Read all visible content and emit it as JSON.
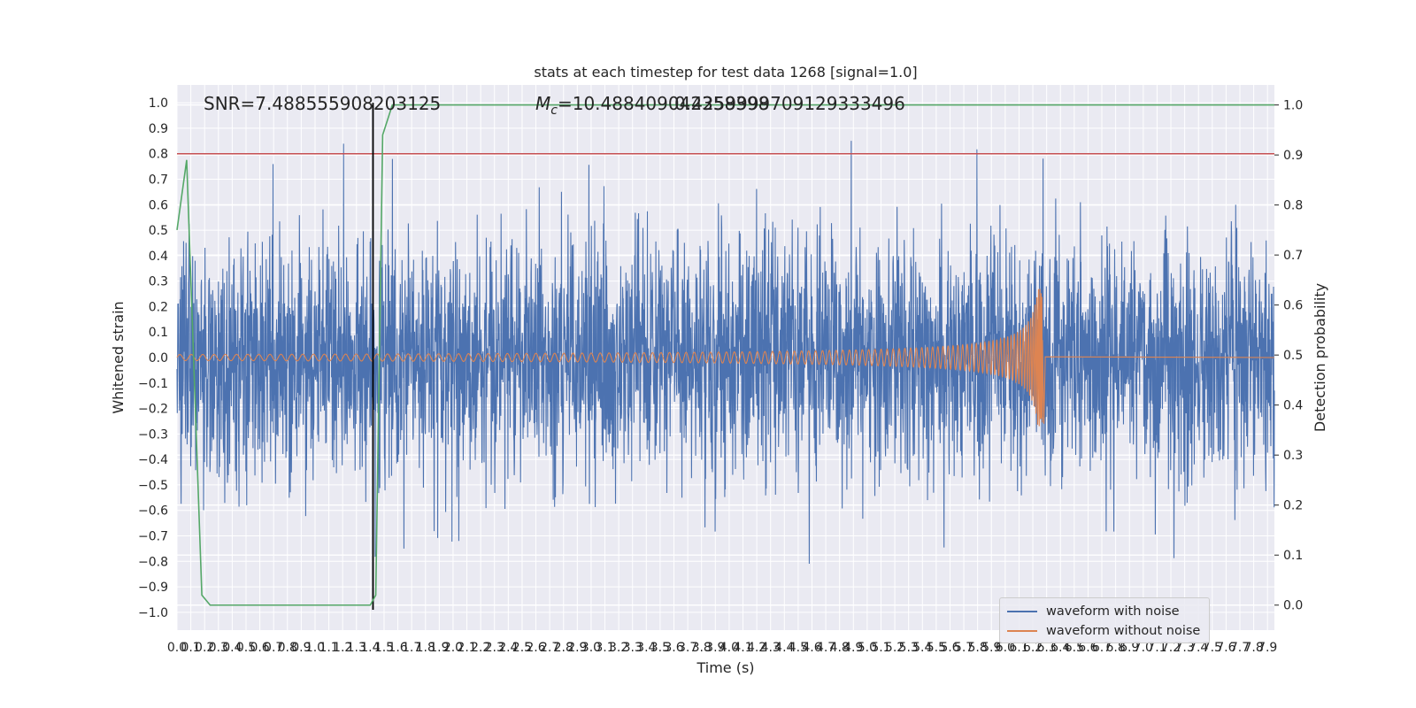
{
  "chart_data": {
    "type": "line",
    "title": "stats at each timestep for test data 1268 [signal=1.0]",
    "xlabel": "Time (s)",
    "ylabel": "Whitened strain",
    "y2label": "Detection probability",
    "xlim": [
      0.0,
      7.95
    ],
    "ylim": [
      -1.07,
      1.07
    ],
    "y2lim": [
      -0.05,
      1.04
    ],
    "yticks": [
      -1.0,
      -0.9,
      -0.8,
      -0.7,
      -0.6,
      -0.5,
      -0.4,
      -0.3,
      -0.2,
      -0.1,
      0.0,
      0.1,
      0.2,
      0.3,
      0.4,
      0.5,
      0.6,
      0.7,
      0.8,
      0.9,
      1.0
    ],
    "y2ticks": [
      0.0,
      0.1,
      0.2,
      0.3,
      0.4,
      0.5,
      0.6,
      0.7,
      0.8,
      0.9,
      1.0
    ],
    "xtick_step": 0.1,
    "grid": true,
    "legend_position": "bottom-right",
    "annotations": {
      "snr": "SNR=7.488555908203125",
      "mc_symbol": "M",
      "mc_subscript": "c",
      "mc_value": "=10.488409042358398",
      "overlap": "0.4259999709129333496"
    },
    "threshold": 0.8,
    "merger_time": 1.42,
    "series": [
      {
        "name": "waveform with noise",
        "color": "#4c72b0",
        "description_type": "noise",
        "amplitude_envelope": 0.36,
        "num_samples": 4000
      },
      {
        "name": "waveform without noise",
        "color": "#dd8452",
        "description_type": "chirp",
        "chirp_start": 0.0,
        "chirp_end": 6.27,
        "peak_amplitude": 0.27
      },
      {
        "name": "",
        "color": "#55a868",
        "description_type": "probability",
        "x": [
          0.0,
          0.07,
          0.18,
          0.24,
          1.22,
          1.4,
          1.44,
          1.49,
          1.56,
          7.95
        ],
        "values": [
          0.75,
          0.89,
          0.02,
          0.0,
          0.0,
          0.0,
          0.02,
          0.94,
          1.0,
          1.0
        ]
      }
    ],
    "threshold_color": "#c44e52",
    "merger_line_color": "#000000"
  }
}
